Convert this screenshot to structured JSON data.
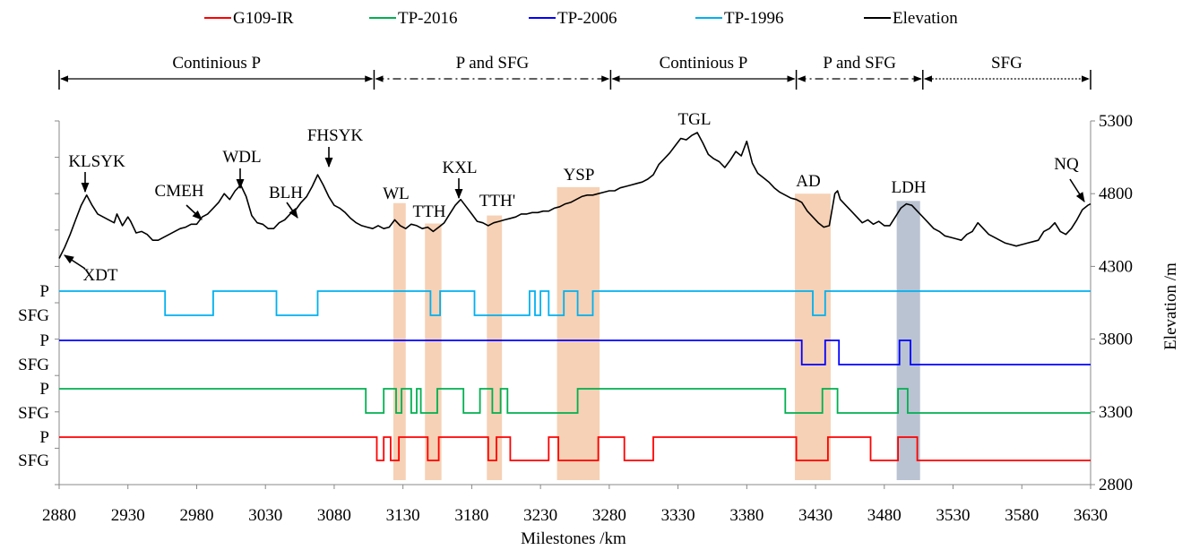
{
  "chart_data": {
    "type": "line",
    "xlabel": "Milestones /km",
    "ylabel": "Elevation /m",
    "x_range": [
      2880,
      3630
    ],
    "y_range": [
      2800,
      5300
    ],
    "x_ticks": [
      2880,
      2930,
      2980,
      3030,
      3080,
      3130,
      3180,
      3230,
      3280,
      3330,
      3380,
      3430,
      3480,
      3530,
      3580,
      3630
    ],
    "y_ticks_right": [
      2800,
      3300,
      3800,
      4300,
      4800,
      5300
    ],
    "state_labels": [
      "P",
      "SFG"
    ],
    "legend_position": "top",
    "legend": [
      {
        "label": "G109-IR",
        "color": "#ff0000"
      },
      {
        "label": "TP-2016",
        "color": "#00b050"
      },
      {
        "label": "TP-2006",
        "color": "#0000ff"
      },
      {
        "label": "TP-1996",
        "color": "#00b0f0"
      },
      {
        "label": "Elevation",
        "color": "#000000"
      }
    ],
    "zones": [
      {
        "label": "Continious P",
        "from": 2880,
        "to": 3109,
        "style": "solid"
      },
      {
        "label": "P and SFG",
        "from": 3109,
        "to": 3281,
        "style": "dashdot"
      },
      {
        "label": "Continious P",
        "from": 3281,
        "to": 3416,
        "style": "solid"
      },
      {
        "label": "P and SFG",
        "from": 3416,
        "to": 3508,
        "style": "dashdot"
      },
      {
        "label": "SFG",
        "from": 3508,
        "to": 3630,
        "style": "dotted"
      }
    ],
    "shaded_regions": [
      {
        "from": 3123,
        "to": 3132,
        "top": 4735,
        "color": "#f4c9a8"
      },
      {
        "from": 3146,
        "to": 3158,
        "top": 4595,
        "color": "#f4c9a8"
      },
      {
        "from": 3191,
        "to": 3202,
        "top": 4650,
        "color": "#f4c9a8"
      },
      {
        "from": 3242,
        "to": 3273,
        "top": 4845,
        "color": "#f4c9a8"
      },
      {
        "from": 3415,
        "to": 3441,
        "top": 4800,
        "color": "#f4c9a8"
      },
      {
        "from": 3489,
        "to": 3506,
        "top": 4750,
        "color": "#adb9ca"
      }
    ],
    "elevation": {
      "name": "Elevation",
      "x": [
        2880,
        2884,
        2888,
        2892,
        2896,
        2900,
        2904,
        2908,
        2912,
        2916,
        2920,
        2922,
        2926,
        2930,
        2932,
        2936,
        2940,
        2944,
        2948,
        2952,
        2956,
        2960,
        2964,
        2968,
        2972,
        2976,
        2980,
        2984,
        2988,
        2992,
        2996,
        3000,
        3004,
        3008,
        3012,
        3016,
        3020,
        3024,
        3028,
        3032,
        3036,
        3040,
        3044,
        3048,
        3052,
        3056,
        3060,
        3064,
        3068,
        3072,
        3076,
        3080,
        3084,
        3088,
        3092,
        3096,
        3100,
        3104,
        3108,
        3112,
        3116,
        3120,
        3124,
        3128,
        3132,
        3136,
        3140,
        3144,
        3148,
        3152,
        3156,
        3160,
        3164,
        3168,
        3172,
        3176,
        3180,
        3184,
        3188,
        3192,
        3196,
        3200,
        3204,
        3208,
        3212,
        3216,
        3220,
        3224,
        3228,
        3232,
        3236,
        3240,
        3244,
        3248,
        3252,
        3256,
        3260,
        3264,
        3268,
        3272,
        3276,
        3280,
        3284,
        3288,
        3292,
        3296,
        3300,
        3304,
        3308,
        3312,
        3316,
        3320,
        3324,
        3328,
        3332,
        3336,
        3340,
        3344,
        3348,
        3352,
        3356,
        3360,
        3364,
        3368,
        3372,
        3376,
        3380,
        3384,
        3388,
        3392,
        3396,
        3400,
        3404,
        3408,
        3412,
        3416,
        3420,
        3424,
        3428,
        3432,
        3436,
        3440,
        3444,
        3446,
        3448,
        3452,
        3456,
        3460,
        3464,
        3468,
        3472,
        3476,
        3480,
        3484,
        3488,
        3492,
        3496,
        3500,
        3504,
        3508,
        3512,
        3516,
        3520,
        3524,
        3528,
        3532,
        3536,
        3540,
        3544,
        3548,
        3552,
        3556,
        3560,
        3564,
        3568,
        3572,
        3576,
        3580,
        3584,
        3588,
        3592,
        3596,
        3600,
        3604,
        3608,
        3612,
        3616,
        3620,
        3624,
        3628,
        3630
      ],
      "y": [
        4355,
        4430,
        4520,
        4620,
        4720,
        4790,
        4720,
        4660,
        4640,
        4620,
        4600,
        4660,
        4580,
        4640,
        4610,
        4530,
        4540,
        4520,
        4480,
        4480,
        4500,
        4520,
        4540,
        4560,
        4570,
        4590,
        4590,
        4640,
        4660,
        4700,
        4740,
        4800,
        4760,
        4820,
        4860,
        4780,
        4650,
        4600,
        4590,
        4560,
        4560,
        4600,
        4620,
        4660,
        4690,
        4740,
        4780,
        4850,
        4930,
        4860,
        4780,
        4720,
        4700,
        4670,
        4630,
        4600,
        4580,
        4570,
        4560,
        4580,
        4560,
        4570,
        4620,
        4580,
        4560,
        4590,
        4580,
        4560,
        4570,
        4540,
        4570,
        4600,
        4660,
        4720,
        4760,
        4710,
        4660,
        4610,
        4600,
        4580,
        4600,
        4610,
        4620,
        4630,
        4640,
        4660,
        4660,
        4670,
        4670,
        4680,
        4680,
        4700,
        4710,
        4730,
        4740,
        4760,
        4780,
        4790,
        4790,
        4800,
        4810,
        4820,
        4820,
        4840,
        4850,
        4860,
        4870,
        4880,
        4900,
        4930,
        5000,
        5040,
        5080,
        5130,
        5180,
        5170,
        5200,
        5220,
        5150,
        5070,
        5040,
        5020,
        4980,
        5030,
        5090,
        5060,
        5160,
        5010,
        4940,
        4910,
        4880,
        4840,
        4810,
        4790,
        4770,
        4760,
        4740,
        4680,
        4640,
        4600,
        4570,
        4580,
        4800,
        4820,
        4760,
        4720,
        4680,
        4640,
        4600,
        4620,
        4590,
        4610,
        4580,
        4580,
        4640,
        4700,
        4730,
        4720,
        4680,
        4640,
        4600,
        4560,
        4540,
        4510,
        4500,
        4490,
        4480,
        4520,
        4540,
        4600,
        4560,
        4520,
        4500,
        4480,
        4460,
        4450,
        4440,
        4450,
        4460,
        4470,
        4480,
        4540,
        4560,
        4600,
        4540,
        4520,
        4560,
        4620,
        4690,
        4720,
        4730
      ]
    },
    "landmarks": [
      {
        "label": "XDT",
        "x": 2881,
        "y": 4350
      },
      {
        "label": "KLSYK",
        "x": 2900,
        "y": 4790
      },
      {
        "label": "CMEH",
        "x": 2983,
        "y": 4590
      },
      {
        "label": "WDL",
        "x": 3012,
        "y": 4810
      },
      {
        "label": "BLH",
        "x": 3054,
        "y": 4590
      },
      {
        "label": "FHSYK",
        "x": 3072,
        "y": 4945
      },
      {
        "label": "WL",
        "x": 3129,
        "y": null
      },
      {
        "label": "TTH",
        "x": 3151,
        "y": null
      },
      {
        "label": "KXL",
        "x": 3173,
        "y": 4765
      },
      {
        "label": "TTH'",
        "x": 3196,
        "y": null
      },
      {
        "label": "YSP",
        "x": 3258,
        "y": null
      },
      {
        "label": "TGL",
        "x": 3344,
        "y": null
      },
      {
        "label": "AD",
        "x": 3428,
        "y": null
      },
      {
        "label": "LDH",
        "x": 3497,
        "y": null
      },
      {
        "label": "NQ",
        "x": 3627,
        "y": 4760
      }
    ],
    "series": [
      {
        "name": "TP-1996",
        "color": "#00b0f0",
        "segments": [
          {
            "from": 2880,
            "to": 2957,
            "state": "P"
          },
          {
            "from": 2957,
            "to": 2992,
            "state": "SFG"
          },
          {
            "from": 2992,
            "to": 3038,
            "state": "P"
          },
          {
            "from": 3038,
            "to": 3068,
            "state": "SFG"
          },
          {
            "from": 3068,
            "to": 3150,
            "state": "P"
          },
          {
            "from": 3150,
            "to": 3157,
            "state": "SFG"
          },
          {
            "from": 3157,
            "to": 3182,
            "state": "P"
          },
          {
            "from": 3182,
            "to": 3222,
            "state": "SFG"
          },
          {
            "from": 3222,
            "to": 3226,
            "state": "P"
          },
          {
            "from": 3226,
            "to": 3230,
            "state": "SFG"
          },
          {
            "from": 3230,
            "to": 3236,
            "state": "P"
          },
          {
            "from": 3236,
            "to": 3247,
            "state": "SFG"
          },
          {
            "from": 3247,
            "to": 3257,
            "state": "P"
          },
          {
            "from": 3257,
            "to": 3268,
            "state": "SFG"
          },
          {
            "from": 3268,
            "to": 3428,
            "state": "P"
          },
          {
            "from": 3428,
            "to": 3437,
            "state": "SFG"
          },
          {
            "from": 3437,
            "to": 3630,
            "state": "P"
          }
        ]
      },
      {
        "name": "TP-2006",
        "color": "#0000ff",
        "segments": [
          {
            "from": 2880,
            "to": 3420,
            "state": "P"
          },
          {
            "from": 3420,
            "to": 3437,
            "state": "SFG"
          },
          {
            "from": 3437,
            "to": 3447,
            "state": "P"
          },
          {
            "from": 3447,
            "to": 3491,
            "state": "SFG"
          },
          {
            "from": 3491,
            "to": 3499,
            "state": "P"
          },
          {
            "from": 3499,
            "to": 3630,
            "state": "SFG"
          }
        ]
      },
      {
        "name": "TP-2016",
        "color": "#00b050",
        "segments": [
          {
            "from": 2880,
            "to": 3103,
            "state": "P"
          },
          {
            "from": 3103,
            "to": 3116,
            "state": "SFG"
          },
          {
            "from": 3116,
            "to": 3125,
            "state": "P"
          },
          {
            "from": 3125,
            "to": 3129,
            "state": "SFG"
          },
          {
            "from": 3129,
            "to": 3136,
            "state": "P"
          },
          {
            "from": 3136,
            "to": 3140,
            "state": "SFG"
          },
          {
            "from": 3140,
            "to": 3143,
            "state": "P"
          },
          {
            "from": 3143,
            "to": 3155,
            "state": "SFG"
          },
          {
            "from": 3155,
            "to": 3174,
            "state": "P"
          },
          {
            "from": 3174,
            "to": 3186,
            "state": "SFG"
          },
          {
            "from": 3186,
            "to": 3195,
            "state": "P"
          },
          {
            "from": 3195,
            "to": 3201,
            "state": "SFG"
          },
          {
            "from": 3201,
            "to": 3206,
            "state": "P"
          },
          {
            "from": 3206,
            "to": 3257,
            "state": "SFG"
          },
          {
            "from": 3257,
            "to": 3408,
            "state": "P"
          },
          {
            "from": 3408,
            "to": 3435,
            "state": "SFG"
          },
          {
            "from": 3435,
            "to": 3446,
            "state": "P"
          },
          {
            "from": 3446,
            "to": 3490,
            "state": "SFG"
          },
          {
            "from": 3490,
            "to": 3497,
            "state": "P"
          },
          {
            "from": 3497,
            "to": 3630,
            "state": "SFG"
          }
        ]
      },
      {
        "name": "G109-IR",
        "color": "#ff0000",
        "segments": [
          {
            "from": 2880,
            "to": 3111,
            "state": "P"
          },
          {
            "from": 3111,
            "to": 3116,
            "state": "SFG"
          },
          {
            "from": 3116,
            "to": 3121,
            "state": "P"
          },
          {
            "from": 3121,
            "to": 3127,
            "state": "SFG"
          },
          {
            "from": 3127,
            "to": 3148,
            "state": "P"
          },
          {
            "from": 3148,
            "to": 3156,
            "state": "SFG"
          },
          {
            "from": 3156,
            "to": 3192,
            "state": "P"
          },
          {
            "from": 3192,
            "to": 3198,
            "state": "SFG"
          },
          {
            "from": 3198,
            "to": 3208,
            "state": "P"
          },
          {
            "from": 3208,
            "to": 3236,
            "state": "SFG"
          },
          {
            "from": 3236,
            "to": 3243,
            "state": "P"
          },
          {
            "from": 3243,
            "to": 3272,
            "state": "SFG"
          },
          {
            "from": 3272,
            "to": 3291,
            "state": "P"
          },
          {
            "from": 3291,
            "to": 3312,
            "state": "SFG"
          },
          {
            "from": 3312,
            "to": 3416,
            "state": "P"
          },
          {
            "from": 3416,
            "to": 3439,
            "state": "SFG"
          },
          {
            "from": 3439,
            "to": 3470,
            "state": "P"
          },
          {
            "from": 3470,
            "to": 3490,
            "state": "SFG"
          },
          {
            "from": 3490,
            "to": 3504,
            "state": "P"
          },
          {
            "from": 3504,
            "to": 3630,
            "state": "SFG"
          }
        ]
      }
    ]
  }
}
